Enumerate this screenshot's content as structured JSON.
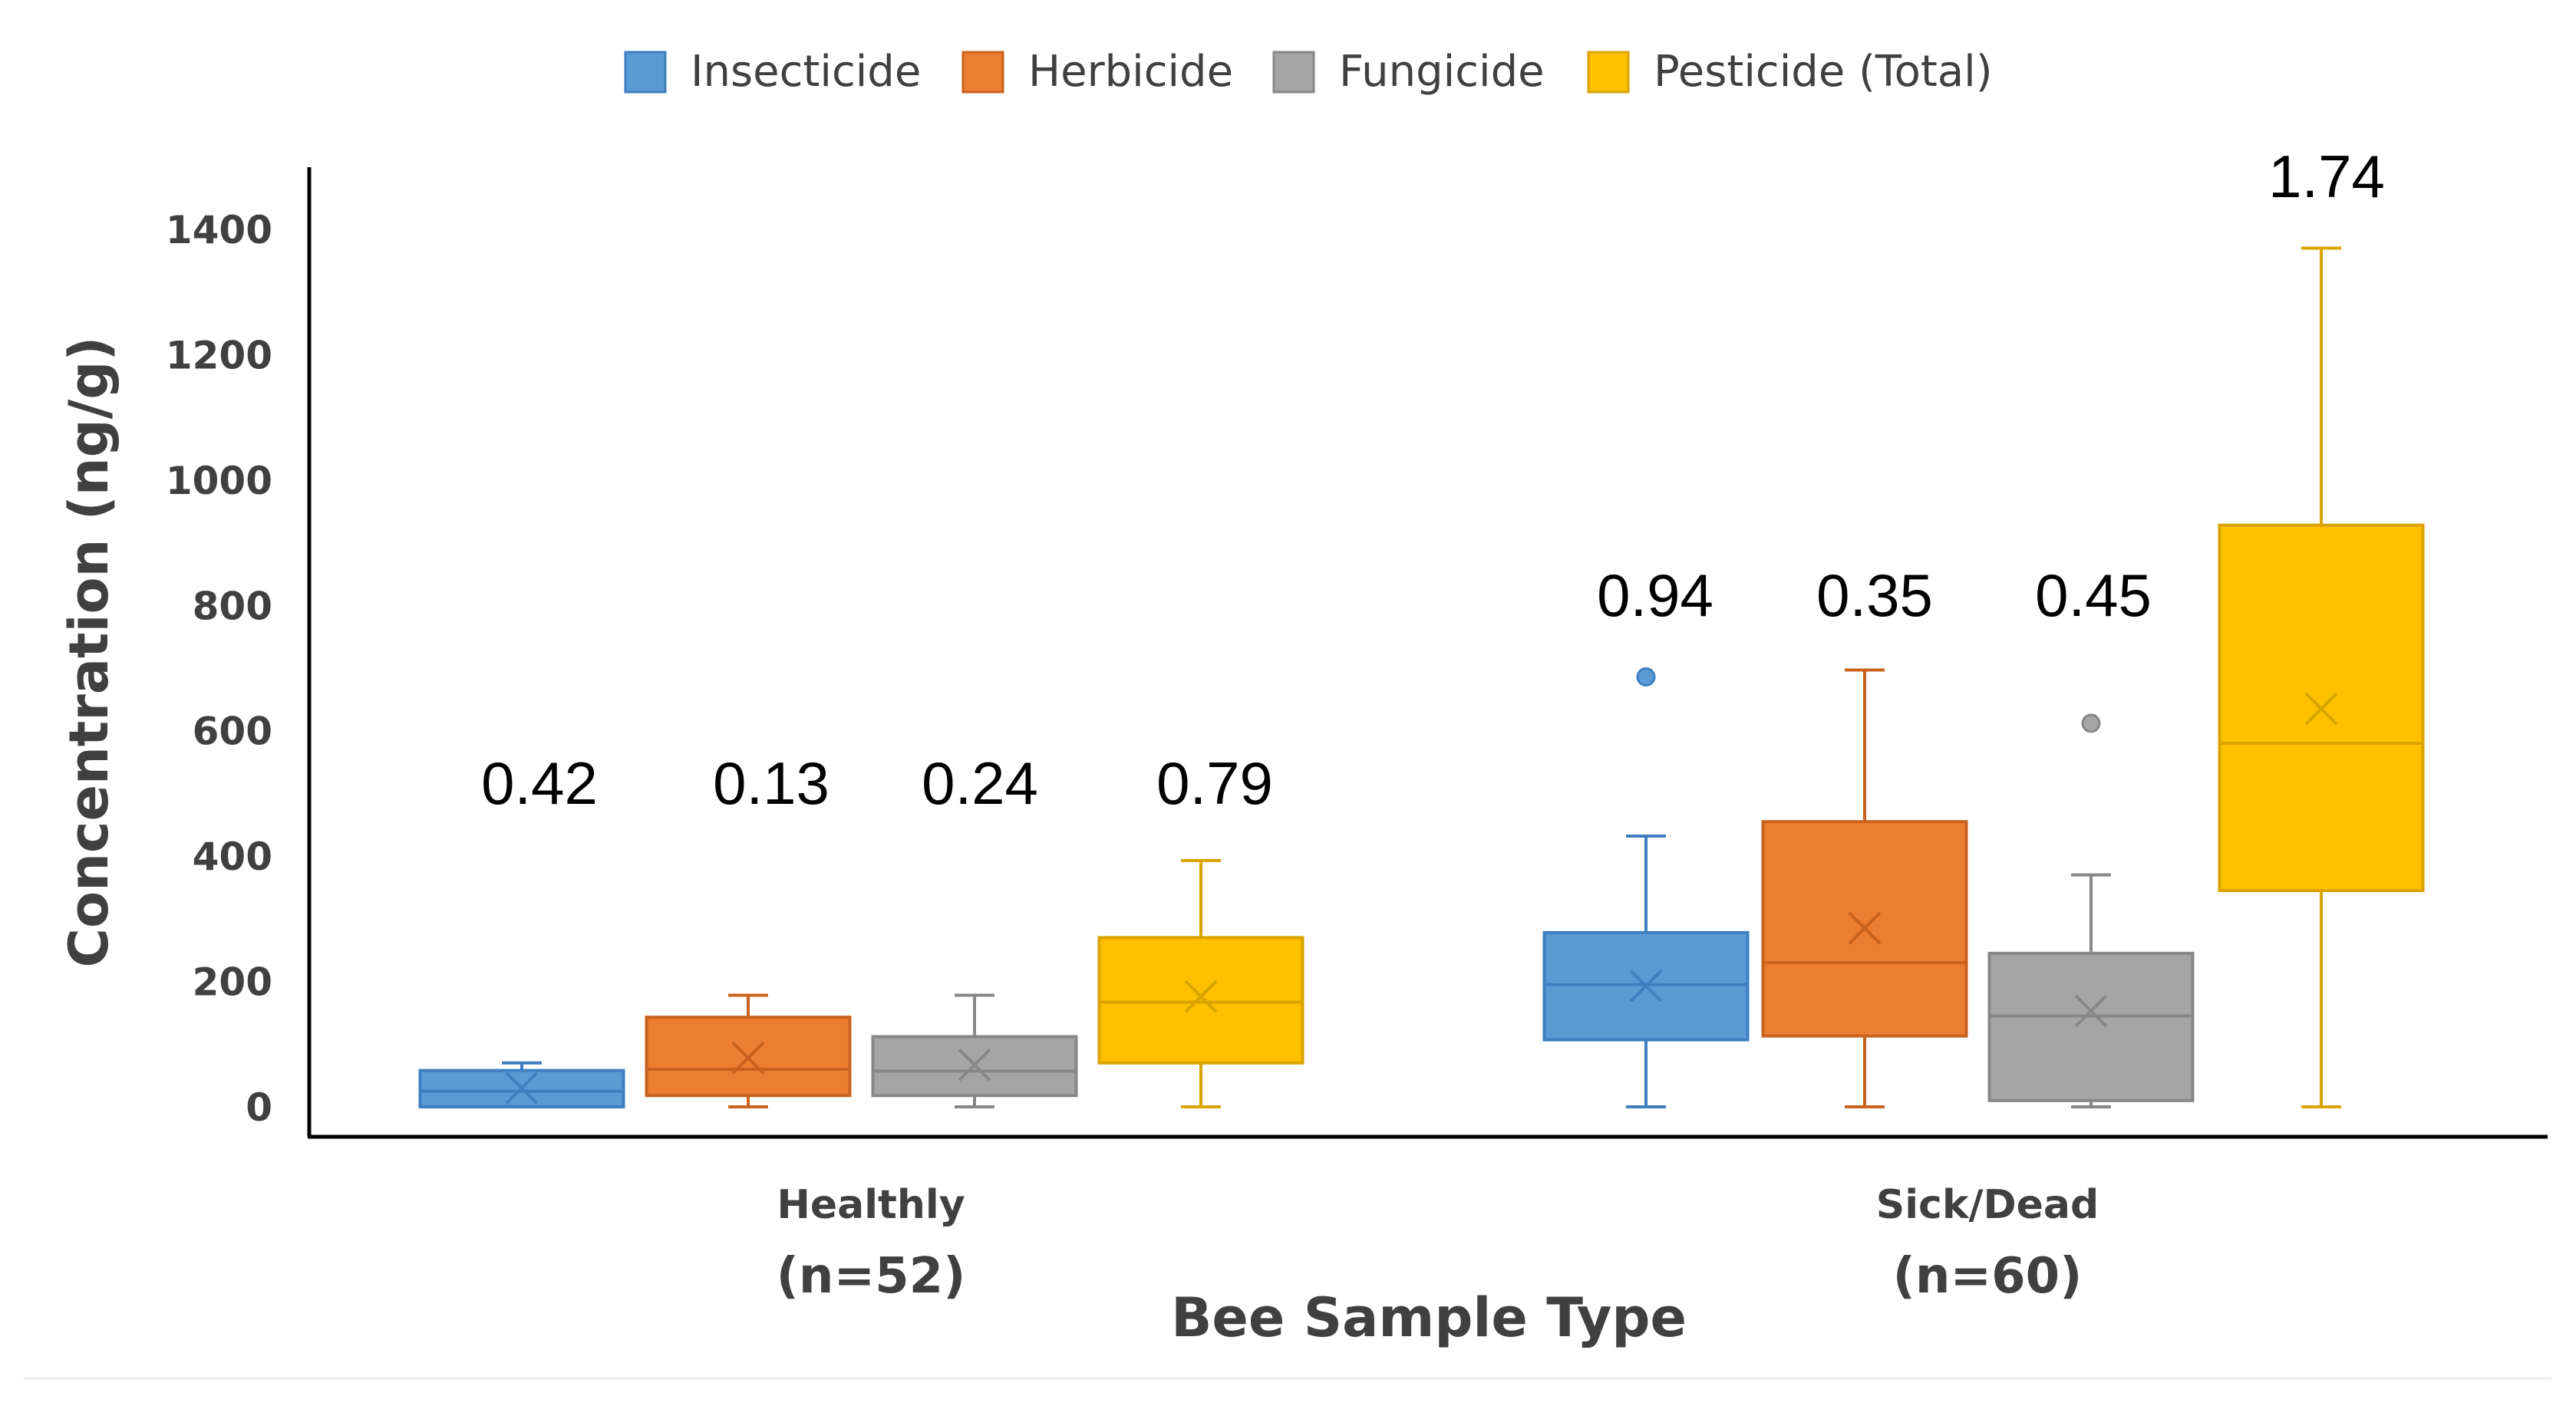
{
  "chart_data": {
    "type": "box",
    "title": "",
    "xlabel": "Bee Sample Type",
    "ylabel": "Concentration (ng/g)",
    "ylim": [
      -50,
      1500
    ],
    "yticks": [
      "0",
      "200",
      "400",
      "600",
      "800",
      "1000",
      "1200",
      "1400"
    ],
    "ytick_values": [
      0,
      200,
      400,
      600,
      800,
      1000,
      1200,
      1400
    ],
    "grid": false,
    "legend_position": "top",
    "categories": [
      {
        "name": "Healthly",
        "n_label": "(n=52)"
      },
      {
        "name": "Sick/Dead",
        "n_label": "(n=60)"
      }
    ],
    "series": [
      {
        "name": "Insecticide",
        "color": "#5B9BD5",
        "edge_color": "#3D7FC0",
        "boxes": [
          {
            "min": 0,
            "q1": 0,
            "median": 25,
            "q3": 58,
            "max": 70,
            "mean": 30,
            "outliers": [],
            "label": "0.42"
          },
          {
            "min": 0,
            "q1": 107,
            "median": 195,
            "q3": 278,
            "max": 432,
            "mean": 193,
            "outliers": [
              686
            ],
            "label": "0.94"
          }
        ]
      },
      {
        "name": "Herbicide",
        "color": "#ED7D31",
        "edge_color": "#C9621E",
        "boxes": [
          {
            "min": 0,
            "q1": 18,
            "median": 60,
            "q3": 143,
            "max": 178,
            "mean": 78,
            "outliers": [],
            "label": "0.13"
          },
          {
            "min": 0,
            "q1": 113,
            "median": 230,
            "q3": 455,
            "max": 697,
            "mean": 285,
            "outliers": [],
            "label": "0.35"
          }
        ]
      },
      {
        "name": "Fungicide",
        "color": "#A5A5A5",
        "edge_color": "#878787",
        "boxes": [
          {
            "min": 0,
            "q1": 18,
            "median": 57,
            "q3": 112,
            "max": 178,
            "mean": 67,
            "outliers": [],
            "label": "0.24"
          },
          {
            "min": 0,
            "q1": 10,
            "median": 145,
            "q3": 245,
            "max": 370,
            "mean": 153,
            "outliers": [
              612
            ],
            "label": "0.45"
          }
        ]
      },
      {
        "name": "Pesticide (Total)",
        "color": "#FFC000",
        "edge_color": "#D9A300",
        "boxes": [
          {
            "min": 0,
            "q1": 70,
            "median": 167,
            "q3": 270,
            "max": 393,
            "mean": 176,
            "outliers": [],
            "label": "0.79"
          },
          {
            "min": 0,
            "q1": 345,
            "median": 580,
            "q3": 928,
            "max": 1370,
            "mean": 635,
            "outliers": [],
            "label": "1.74"
          }
        ]
      }
    ]
  }
}
